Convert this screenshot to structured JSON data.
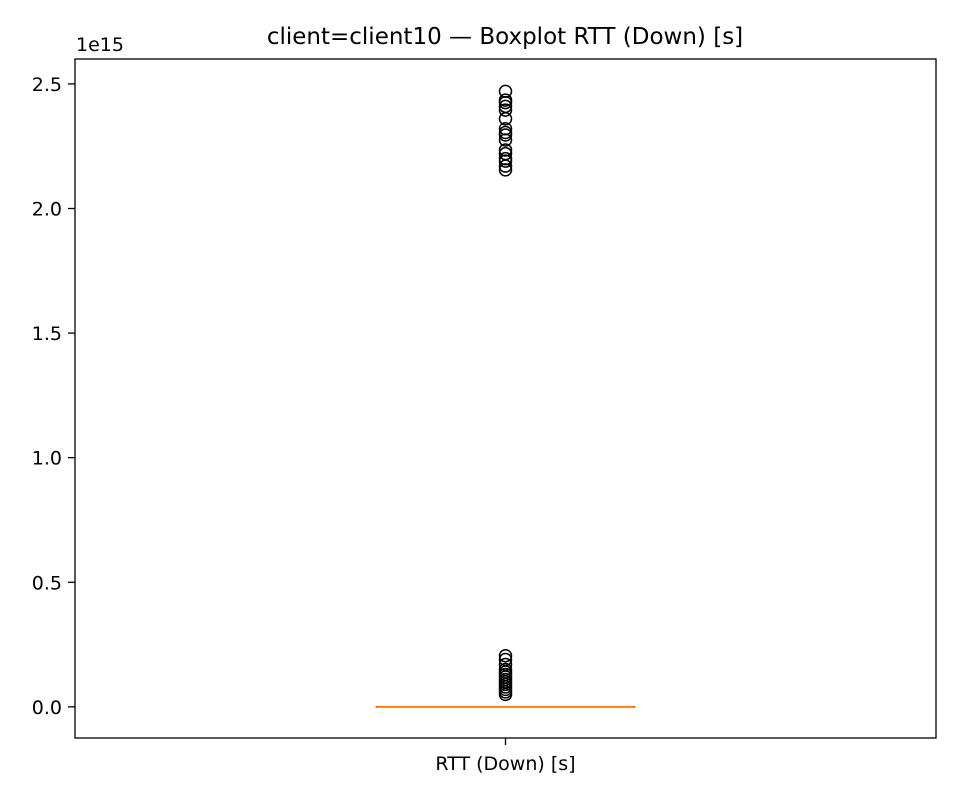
{
  "chart_data": {
    "type": "box",
    "title": "client=client10 — Boxplot RTT (Down) [s]",
    "xlabel": "",
    "ylabel": "",
    "offset_label": "1e15",
    "categories": [
      "RTT (Down) [s]"
    ],
    "ylim": [
      -0.125,
      2.6
    ],
    "yticks": [
      0.0,
      0.5,
      1.0,
      1.5,
      2.0,
      2.5
    ],
    "ytick_labels": [
      "0.0",
      "0.5",
      "1.0",
      "1.5",
      "2.0",
      "2.5"
    ],
    "grid": false,
    "series": [
      {
        "box": {
          "q1": 0.0,
          "median": 0.0,
          "q3": 0.0,
          "whisker_low": 0.0,
          "whisker_high": 0.0
        },
        "outliers": [
          0.05,
          0.06,
          0.07,
          0.08,
          0.09,
          0.1,
          0.11,
          0.12,
          0.13,
          0.14,
          0.15,
          0.17,
          0.19,
          0.205,
          2.155,
          2.17,
          2.19,
          2.2,
          2.22,
          2.235,
          2.275,
          2.295,
          2.305,
          2.32,
          2.36,
          2.395,
          2.41,
          2.425,
          2.435,
          2.47
        ]
      }
    ],
    "colors": {
      "median": "#ff7f0e",
      "box": "#000000",
      "outlier": "#000000"
    }
  }
}
